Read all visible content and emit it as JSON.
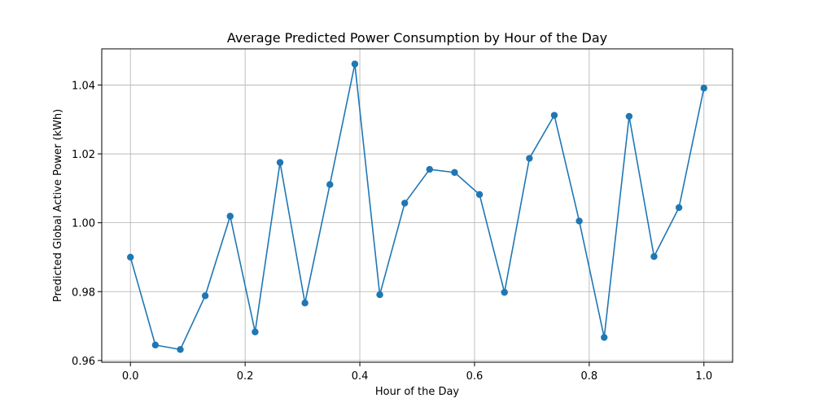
{
  "chart_data": {
    "type": "line",
    "title": "Average Predicted Power Consumption by Hour of the Day",
    "xlabel": "Hour of the Day",
    "ylabel": "Predicted Global Active Power (kWh)",
    "xlim": [
      -0.05,
      1.05
    ],
    "ylim": [
      0.9595,
      1.0505
    ],
    "xticks": [
      0.0,
      0.2,
      0.4,
      0.6,
      0.8,
      1.0
    ],
    "xtick_labels": [
      "0.0",
      "0.2",
      "0.4",
      "0.6",
      "0.8",
      "1.0"
    ],
    "yticks": [
      0.96,
      0.98,
      1.0,
      1.02,
      1.04
    ],
    "ytick_labels": [
      "0.96",
      "0.98",
      "1.00",
      "1.02",
      "1.04"
    ],
    "grid": true,
    "series": [
      {
        "color": "#1f77b4",
        "marker": "circle",
        "x": [
          0.0,
          0.0435,
          0.087,
          0.1304,
          0.1739,
          0.2174,
          0.2609,
          0.3043,
          0.3478,
          0.3913,
          0.4348,
          0.4783,
          0.5217,
          0.5652,
          0.6087,
          0.6522,
          0.6957,
          0.7391,
          0.7826,
          0.8261,
          0.8696,
          0.913,
          0.9565,
          1.0
        ],
        "y": [
          0.99,
          0.9645,
          0.9632,
          0.9788,
          1.0019,
          0.9683,
          1.0175,
          0.9767,
          1.0111,
          1.0461,
          0.9791,
          1.0057,
          1.0155,
          1.0146,
          1.0082,
          0.9798,
          1.0187,
          1.0312,
          1.0005,
          0.9667,
          1.0309,
          0.9902,
          1.0044,
          1.0391
        ]
      }
    ]
  }
}
